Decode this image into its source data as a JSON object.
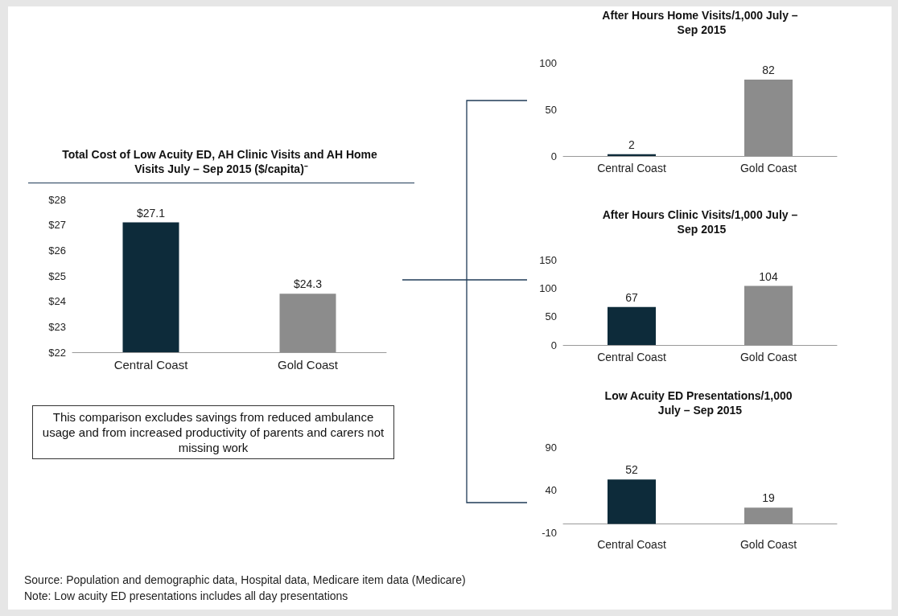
{
  "chart_data": [
    {
      "type": "bar",
      "title": "Total Cost of Low Acuity ED, AH Clinic Visits and AH Home Visits July – Sep 2015 ($/capita)⁻",
      "categories": [
        "Central Coast",
        "Gold Coast"
      ],
      "values": [
        27.1,
        24.3
      ],
      "colors": [
        "#0d2b3a",
        "#8c8c8c"
      ],
      "value_labels": [
        "$27.1",
        "$24.3"
      ],
      "ylim": [
        22,
        28
      ],
      "yticks": [
        {
          "value": 22,
          "label": "$22"
        },
        {
          "value": 23,
          "label": "$23"
        },
        {
          "value": 24,
          "label": "$24"
        },
        {
          "value": 25,
          "label": "$25"
        },
        {
          "value": 26,
          "label": "$26"
        },
        {
          "value": 27,
          "label": "$27"
        },
        {
          "value": 28,
          "label": "$28"
        }
      ],
      "grid": false,
      "annotations": [
        "This comparison excludes savings from reduced ambulance usage and from increased productivity of parents and carers not missing work",
        "Source: Population and demographic data, Hospital data, Medicare item data (Medicare)",
        "Note: Low acuity ED presentations includes all day presentations"
      ]
    },
    {
      "type": "bar",
      "title": "After Hours Home Visits/1,000 July – Sep 2015",
      "categories": [
        "Central Coast",
        "Gold Coast"
      ],
      "values": [
        2,
        82
      ],
      "colors": [
        "#0d2b3a",
        "#8c8c8c"
      ],
      "data_labels": true,
      "ylim": [
        0,
        100
      ],
      "yticks": [
        0,
        50,
        100
      ],
      "grid": false
    },
    {
      "type": "bar",
      "title": "After Hours Clinic Visits/1,000 July – Sep 2015",
      "categories": [
        "Central Coast",
        "Gold Coast"
      ],
      "values": [
        67,
        104
      ],
      "colors": [
        "#0d2b3a",
        "#8c8c8c"
      ],
      "data_labels": true,
      "ylim": [
        0,
        150
      ],
      "yticks": [
        0,
        50,
        100,
        150
      ],
      "grid": false
    },
    {
      "type": "bar",
      "title": "Low Acuity ED Presentations/1,000 July – Sep 2015",
      "categories": [
        "Central Coast",
        "Gold Coast"
      ],
      "values": [
        52,
        19
      ],
      "colors": [
        "#0d2b3a",
        "#8c8c8c"
      ],
      "data_labels": true,
      "ylim": [
        -10,
        90
      ],
      "yticks": [
        -10,
        40,
        90
      ],
      "grid": false
    }
  ]
}
